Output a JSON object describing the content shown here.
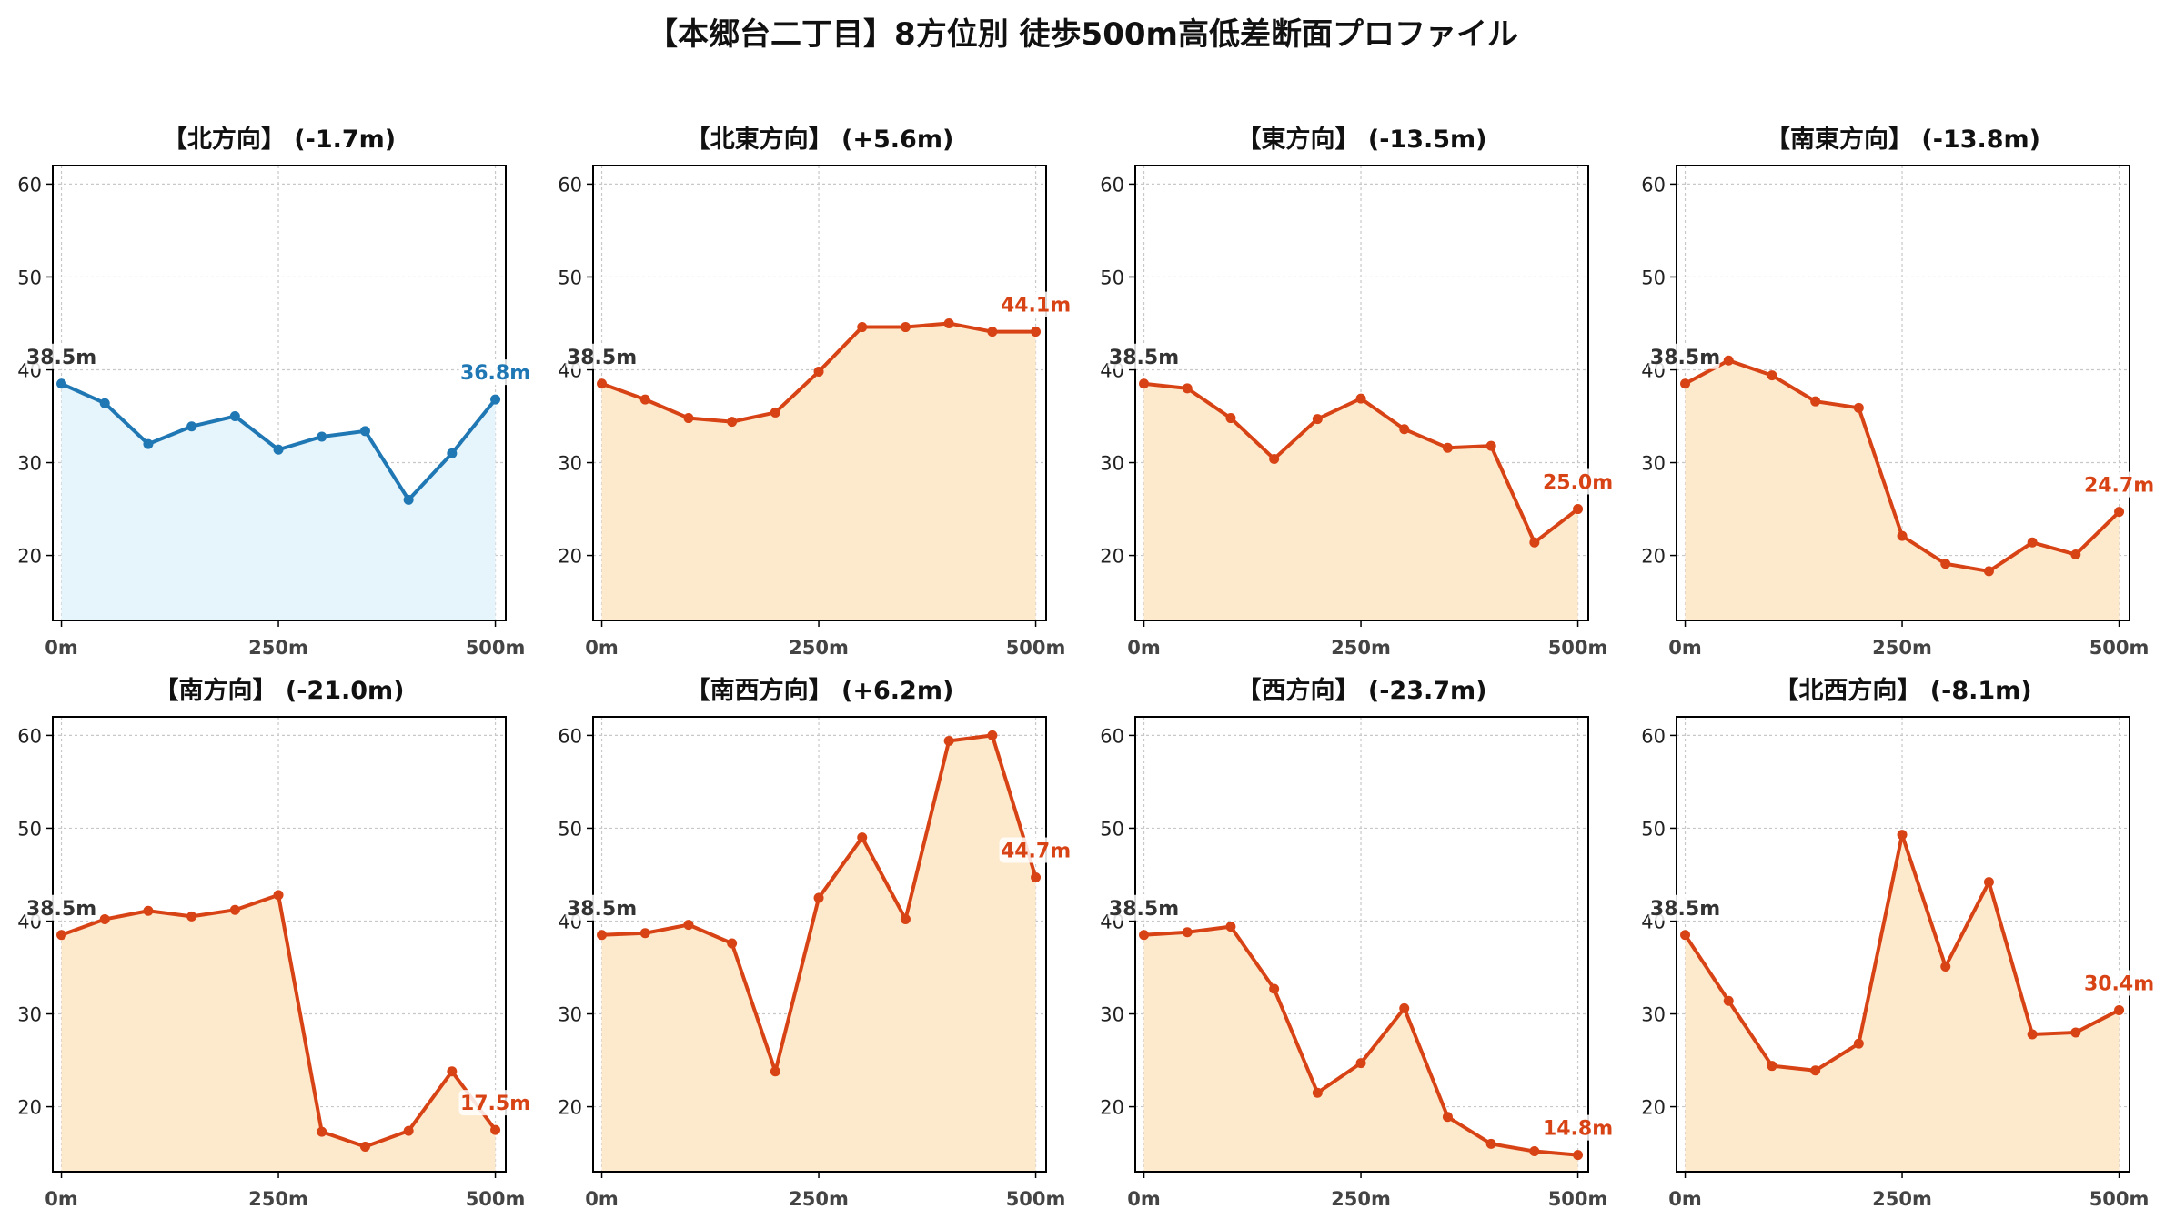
{
  "title": "【本郷台二丁目】8方位別 徒歩500m高低差断面プロファイル",
  "colors": {
    "north": "#1f77b4",
    "others": "#d84315",
    "north_fill": "#e6f4fb",
    "others_fill": "#fde9cc",
    "start_label": "#333333",
    "grid": "#c8c8c8"
  },
  "chart_data": [
    {
      "type": "area",
      "title": "【北方向】 (-1.7m)",
      "color": "north",
      "x": [
        0,
        50,
        100,
        150,
        200,
        250,
        300,
        350,
        400,
        450,
        500
      ],
      "y": [
        38.5,
        36.4,
        32.0,
        33.9,
        35.0,
        31.4,
        32.8,
        33.4,
        26.0,
        31.0,
        36.8
      ],
      "start_label": "38.5m",
      "end_label": "36.8m"
    },
    {
      "type": "area",
      "title": "【北東方向】 (+5.6m)",
      "color": "others",
      "x": [
        0,
        50,
        100,
        150,
        200,
        250,
        300,
        350,
        400,
        450,
        500
      ],
      "y": [
        38.5,
        36.8,
        34.8,
        34.4,
        35.4,
        39.8,
        44.6,
        44.6,
        45.0,
        44.1,
        44.1
      ],
      "start_label": "38.5m",
      "end_label": "44.1m"
    },
    {
      "type": "area",
      "title": "【東方向】 (-13.5m)",
      "color": "others",
      "x": [
        0,
        50,
        100,
        150,
        200,
        250,
        300,
        350,
        400,
        450,
        500
      ],
      "y": [
        38.5,
        38.0,
        34.8,
        30.4,
        34.7,
        36.9,
        33.6,
        31.6,
        31.8,
        21.4,
        25.0
      ],
      "start_label": "38.5m",
      "end_label": "25.0m"
    },
    {
      "type": "area",
      "title": "【南東方向】 (-13.8m)",
      "color": "others",
      "x": [
        0,
        50,
        100,
        150,
        200,
        250,
        300,
        350,
        400,
        450,
        500
      ],
      "y": [
        38.5,
        41.0,
        39.4,
        36.6,
        35.9,
        22.1,
        19.1,
        18.3,
        21.4,
        20.1,
        24.7
      ],
      "start_label": "38.5m",
      "end_label": "24.7m"
    },
    {
      "type": "area",
      "title": "【南方向】 (-21.0m)",
      "color": "others",
      "x": [
        0,
        50,
        100,
        150,
        200,
        250,
        300,
        350,
        400,
        450,
        500
      ],
      "y": [
        38.5,
        40.2,
        41.1,
        40.5,
        41.2,
        42.8,
        17.3,
        15.7,
        17.4,
        23.8,
        17.5
      ],
      "start_label": "38.5m",
      "end_label": "17.5m"
    },
    {
      "type": "area",
      "title": "【南西方向】 (+6.2m)",
      "color": "others",
      "x": [
        0,
        50,
        100,
        150,
        200,
        250,
        300,
        350,
        400,
        450,
        500
      ],
      "y": [
        38.5,
        38.7,
        39.6,
        37.6,
        23.8,
        42.5,
        49.0,
        40.2,
        59.4,
        60.0,
        44.7
      ],
      "start_label": "38.5m",
      "end_label": "44.7m"
    },
    {
      "type": "area",
      "title": "【西方向】 (-23.7m)",
      "color": "others",
      "x": [
        0,
        50,
        100,
        150,
        200,
        250,
        300,
        350,
        400,
        450,
        500
      ],
      "y": [
        38.5,
        38.8,
        39.4,
        32.7,
        21.5,
        24.7,
        30.6,
        18.9,
        16.0,
        15.2,
        14.8
      ],
      "start_label": "38.5m",
      "end_label": "14.8m"
    },
    {
      "type": "area",
      "title": "【北西方向】 (-8.1m)",
      "color": "others",
      "x": [
        0,
        50,
        100,
        150,
        200,
        250,
        300,
        350,
        400,
        450,
        500
      ],
      "y": [
        38.5,
        31.4,
        24.4,
        23.9,
        26.8,
        49.3,
        35.1,
        44.2,
        27.8,
        28.0,
        30.4
      ],
      "start_label": "38.5m",
      "end_label": "30.4m"
    }
  ],
  "axes": {
    "xlim": [
      -10,
      512
    ],
    "ylim": [
      13,
      62
    ],
    "x_ticks": [
      0,
      250,
      500
    ],
    "x_tick_labels": [
      "0m",
      "250m",
      "500m"
    ],
    "y_ticks": [
      20,
      30,
      40,
      50,
      60
    ],
    "y_tick_labels": [
      "20",
      "30",
      "40",
      "50",
      "60"
    ],
    "grid": true
  }
}
